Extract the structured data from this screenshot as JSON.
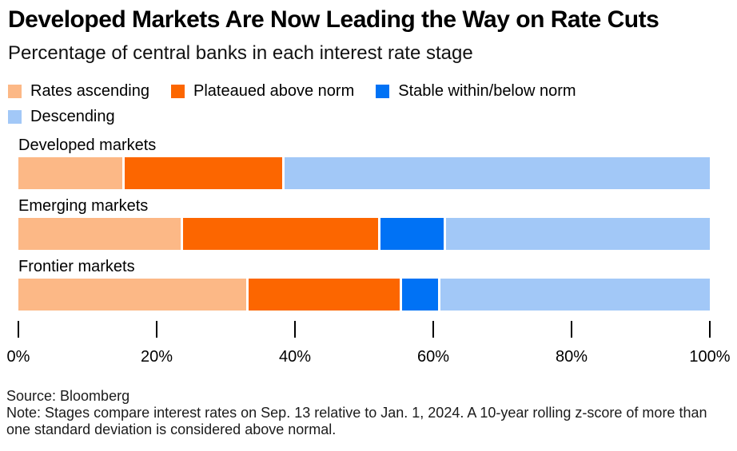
{
  "header": {
    "title": "Developed Markets Are Now Leading the Way on Rate Cuts",
    "subtitle": "Percentage of central banks in each interest rate stage"
  },
  "chart_data": {
    "type": "bar",
    "stacked": true,
    "orientation": "horizontal",
    "title": "Developed Markets Are Now Leading the Way on Rate Cuts",
    "subtitle": "Percentage of central banks in each interest rate stage",
    "categories": [
      "Developed markets",
      "Emerging markets",
      "Frontier markets"
    ],
    "series": [
      {
        "name": "Rates ascending",
        "color": "#FCB886",
        "values": [
          15.4,
          23.8,
          33.3
        ]
      },
      {
        "name": "Plateaued above norm",
        "color": "#FC6600",
        "values": [
          23.1,
          28.6,
          22.2
        ]
      },
      {
        "name": "Stable within/below norm",
        "color": "#0072F5",
        "values": [
          0,
          9.5,
          5.6
        ]
      },
      {
        "name": "Descending",
        "color": "#A2C8F7",
        "values": [
          61.5,
          38.1,
          38.9
        ]
      }
    ],
    "xlim": [
      0,
      100
    ],
    "x_tick_labels": [
      "0%",
      "20%",
      "40%",
      "60%",
      "80%",
      "100%"
    ],
    "unit": "%",
    "grid": false,
    "legend_position": "top"
  },
  "colors": {
    "background": "#FFFFFF",
    "text": "#000000",
    "segment_gap": "#FFFFFF"
  },
  "footer": {
    "source": "Source: Bloomberg",
    "note": "Note: Stages compare interest rates on Sep. 13 relative to Jan. 1, 2024. A 10-year rolling z-score of more than one standard deviation is considered above normal."
  }
}
